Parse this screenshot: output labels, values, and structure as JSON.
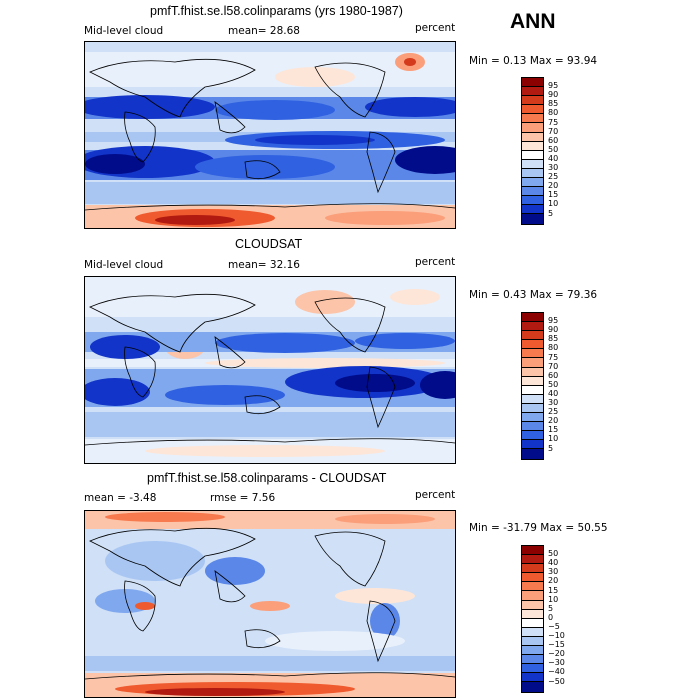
{
  "season": "ANN",
  "panels": [
    {
      "title": "pmfT.fhist.se.l58.colinparams (yrs 1980-1987)",
      "left_label": "Mid-level cloud",
      "stat_label": "mean=  28.68",
      "units": "percent",
      "minmax": "Min =    0.13 Max =   93.94",
      "colorbar_labels": [
        "95",
        "90",
        "85",
        "80",
        "75",
        "70",
        "60",
        "50",
        "40",
        "30",
        "25",
        "20",
        "15",
        "10",
        "5"
      ],
      "colors": [
        "#8b0000",
        "#b01a10",
        "#d43a1c",
        "#ef5a2e",
        "#f77a4f",
        "#fb9e7a",
        "#fcc4a8",
        "#fde6d8",
        "#ffffff",
        "#cfe0f7",
        "#a9c6f3",
        "#80a8ee",
        "#5a87e8",
        "#3061e0",
        "#1234c8",
        "#000c8a"
      ]
    },
    {
      "title": "CLOUDSAT",
      "left_label": "Mid-level cloud",
      "stat_label": "mean=  32.16",
      "units": "percent",
      "minmax": "Min =    0.43 Max =   79.36",
      "colorbar_labels": [
        "95",
        "90",
        "85",
        "80",
        "75",
        "70",
        "60",
        "50",
        "40",
        "30",
        "25",
        "20",
        "15",
        "10",
        "5"
      ],
      "colors": [
        "#8b0000",
        "#b01a10",
        "#d43a1c",
        "#ef5a2e",
        "#f77a4f",
        "#fb9e7a",
        "#fcc4a8",
        "#fde6d8",
        "#ffffff",
        "#cfe0f7",
        "#a9c6f3",
        "#80a8ee",
        "#5a87e8",
        "#3061e0",
        "#1234c8",
        "#000c8a"
      ]
    },
    {
      "title": "pmfT.fhist.se.l58.colinparams - CLOUDSAT",
      "left_label": "mean =   -3.48",
      "stat_label": "rmse =   7.56",
      "units": "percent",
      "minmax": "Min =  -31.79 Max =   50.55",
      "colorbar_labels": [
        "50",
        "40",
        "30",
        "20",
        "15",
        "10",
        "5",
        "0",
        "−5",
        "−10",
        "−15",
        "−20",
        "−30",
        "−40",
        "−50"
      ],
      "colors": [
        "#8b0000",
        "#b01a10",
        "#d43a1c",
        "#ef5a2e",
        "#f77a4f",
        "#fb9e7a",
        "#fcc4a8",
        "#fde6d8",
        "#ffffff",
        "#cfe0f7",
        "#a9c6f3",
        "#80a8ee",
        "#5a87e8",
        "#3061e0",
        "#1234c8",
        "#000c8a"
      ]
    }
  ]
}
